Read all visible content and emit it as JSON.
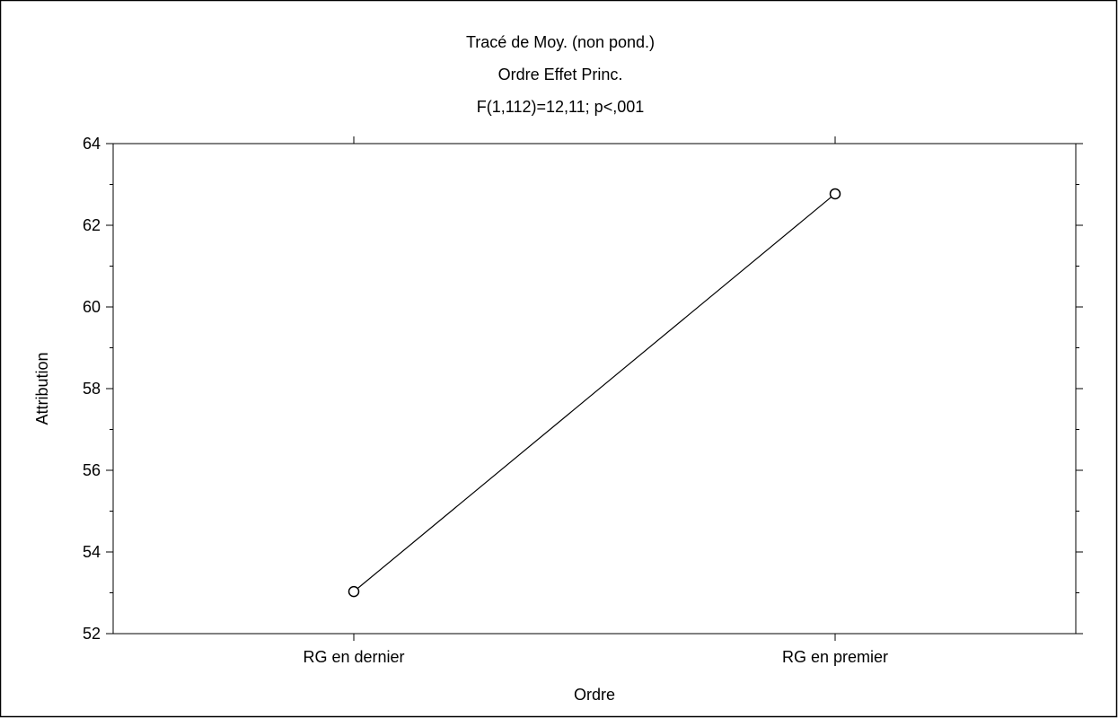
{
  "chart_data": {
    "type": "line",
    "title_lines": [
      "Tracé de Moy. (non pond.)",
      "Ordre Effet Princ.",
      "F(1,112)=12,11; p<,001"
    ],
    "xlabel": "Ordre",
    "ylabel": "Attribution",
    "categories": [
      "RG en dernier",
      "RG en premier"
    ],
    "series": [
      {
        "values": [
          53.03,
          62.77
        ]
      }
    ],
    "ylim": [
      52,
      64
    ],
    "yticks": [
      52,
      54,
      56,
      58,
      60,
      62,
      64
    ],
    "ytick_labels": [
      "52",
      "54",
      "56",
      "58",
      "60",
      "62",
      "64"
    ],
    "grid": false,
    "marker": "open-circle",
    "colors": {
      "line": "#000000",
      "marker_fill": "#ffffff",
      "axes": "#000000",
      "background": "#ffffff"
    }
  }
}
